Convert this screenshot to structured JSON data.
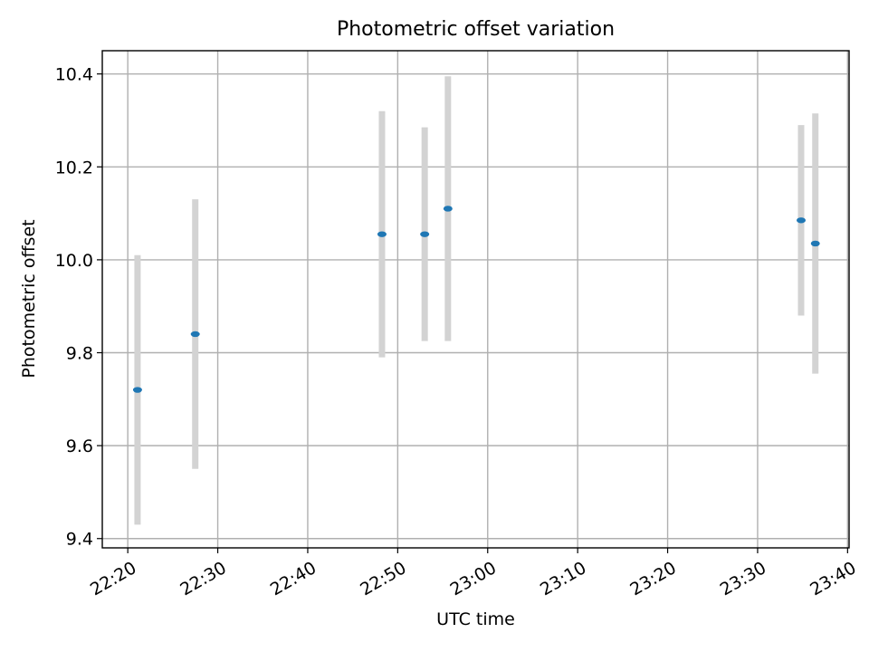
{
  "chart_data": {
    "type": "scatter",
    "title": "Photometric offset variation",
    "xlabel": "UTC time",
    "ylabel": "Photometric offset",
    "grid": true,
    "x_ticks": [
      "22:20",
      "22:30",
      "22:40",
      "22:50",
      "23:00",
      "23:10",
      "23:20",
      "23:30",
      "23:40"
    ],
    "y_ticks": [
      9.4,
      9.6,
      9.8,
      10.0,
      10.2,
      10.4
    ],
    "xlim": [
      "22:17:10",
      "23:40:10"
    ],
    "ylim": [
      9.38,
      10.45
    ],
    "series": [
      {
        "color": "#1f77b4",
        "errorbar_color": "#d3d3d3",
        "points": [
          {
            "x": "22:21:05",
            "y": 9.72,
            "ylow": 9.43,
            "yhigh": 10.01
          },
          {
            "x": "22:27:30",
            "y": 9.84,
            "ylow": 9.55,
            "yhigh": 10.13
          },
          {
            "x": "22:48:15",
            "y": 10.055,
            "ylow": 9.79,
            "yhigh": 10.32
          },
          {
            "x": "22:53:00",
            "y": 10.055,
            "ylow": 9.825,
            "yhigh": 10.285
          },
          {
            "x": "22:55:35",
            "y": 10.11,
            "ylow": 9.825,
            "yhigh": 10.395
          },
          {
            "x": "23:34:50",
            "y": 10.085,
            "ylow": 9.88,
            "yhigh": 10.29
          },
          {
            "x": "23:36:25",
            "y": 10.035,
            "ylow": 9.755,
            "yhigh": 10.315
          }
        ]
      }
    ]
  }
}
